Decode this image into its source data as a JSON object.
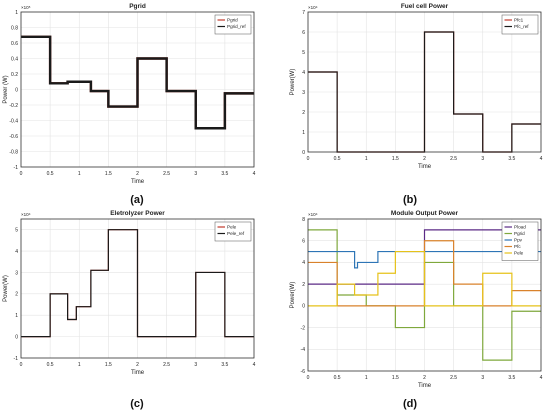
{
  "panel_labels": [
    "(a)",
    "(b)",
    "(c)",
    "(d)"
  ],
  "chart_data": [
    {
      "type": "line",
      "title": "Pgrid",
      "xlabel": "Time",
      "ylabel": "Power (W)",
      "y_exponent": "×10⁵",
      "xlim": [
        0,
        4
      ],
      "ylim": [
        -1,
        1
      ],
      "xticks": [
        0,
        0.5,
        1,
        1.5,
        2,
        2.5,
        3,
        3.5,
        4
      ],
      "yticks": [
        -1,
        -0.8,
        -0.6,
        -0.4,
        -0.2,
        0,
        0.2,
        0.4,
        0.6,
        0.8,
        1
      ],
      "grid": true,
      "legend_position": "top-right",
      "series": [
        {
          "name": "Pgrid",
          "color": "#c0392b",
          "step": true,
          "x": [
            0,
            0.5,
            0.8,
            1.2,
            1.5,
            2,
            2.5,
            3,
            3.5,
            4
          ],
          "y": [
            0.68,
            0.08,
            0.1,
            -0.02,
            -0.22,
            0.4,
            -0.02,
            -0.5,
            -0.05,
            -0.05
          ]
        },
        {
          "name": "Pgrid_ref",
          "color": "#1a1a1a",
          "step": true,
          "x": [
            0,
            0.5,
            0.8,
            1.2,
            1.5,
            2,
            2.5,
            3,
            3.5,
            4
          ],
          "y": [
            0.68,
            0.08,
            0.1,
            -0.02,
            -0.22,
            0.4,
            -0.02,
            -0.5,
            -0.05,
            -0.05
          ]
        }
      ]
    },
    {
      "type": "line",
      "title": "Fuel cell Power",
      "xlabel": "Time",
      "ylabel": "Power(W)",
      "y_exponent": "×10⁴",
      "xlim": [
        0,
        4
      ],
      "ylim": [
        0,
        7
      ],
      "xticks": [
        0,
        0.5,
        1,
        1.5,
        2,
        2.5,
        3,
        3.5,
        4
      ],
      "yticks": [
        0,
        1,
        2,
        3,
        4,
        5,
        6,
        7
      ],
      "grid": true,
      "legend_position": "top-right",
      "series": [
        {
          "name": "Pfc1",
          "color": "#c0392b",
          "step": true,
          "x": [
            0,
            0.5,
            2,
            2.5,
            3,
            3.5,
            4
          ],
          "y": [
            4,
            0,
            6,
            1.9,
            0,
            1.4,
            1.4
          ]
        },
        {
          "name": "Pfc_ref",
          "color": "#1a1a1a",
          "step": true,
          "x": [
            0,
            0.5,
            2,
            2.5,
            3,
            3.5,
            4
          ],
          "y": [
            4,
            0,
            6,
            1.9,
            0,
            1.4,
            1.4
          ]
        }
      ]
    },
    {
      "type": "line",
      "title": "Eletrolyzer Power",
      "xlabel": "Time",
      "ylabel": "Power(W)",
      "y_exponent": "×10⁴",
      "xlim": [
        0,
        4
      ],
      "ylim": [
        -1,
        5.5
      ],
      "xticks": [
        0,
        0.5,
        1,
        1.5,
        2,
        2.5,
        3,
        3.5,
        4
      ],
      "yticks": [
        -1,
        0,
        1,
        2,
        3,
        4,
        5
      ],
      "grid": true,
      "legend_position": "top-right",
      "series": [
        {
          "name": "Pele",
          "color": "#c0392b",
          "step": true,
          "x": [
            0,
            0.5,
            0.8,
            0.95,
            1.2,
            1.5,
            2,
            3,
            3.5,
            4
          ],
          "y": [
            0,
            2,
            0.8,
            1.4,
            3.1,
            5,
            0,
            3,
            0,
            0
          ]
        },
        {
          "name": "Pele_ref",
          "color": "#1a1a1a",
          "step": true,
          "x": [
            0,
            0.5,
            0.8,
            0.95,
            1.2,
            1.5,
            2,
            3,
            3.5,
            4
          ],
          "y": [
            0,
            2,
            0.8,
            1.4,
            3.1,
            5,
            0,
            3,
            0,
            0
          ]
        }
      ]
    },
    {
      "type": "line",
      "title": "Module Output Power",
      "xlabel": "Time",
      "ylabel": "Power(W)",
      "y_exponent": "×10⁴",
      "xlim": [
        0,
        4
      ],
      "ylim": [
        -6,
        8
      ],
      "xticks": [
        0,
        0.5,
        1,
        1.5,
        2,
        2.5,
        3,
        3.5,
        4
      ],
      "yticks": [
        -6,
        -4,
        -2,
        0,
        2,
        4,
        6,
        8
      ],
      "grid": true,
      "legend_position": "top-right",
      "series": [
        {
          "name": "Pload",
          "color": "#5b2a86",
          "step": true,
          "x": [
            0,
            2,
            4
          ],
          "y": [
            2,
            7,
            7
          ]
        },
        {
          "name": "Pgrid",
          "color": "#7fa83c",
          "step": true,
          "x": [
            0,
            0.5,
            1,
            1.5,
            2,
            2.5,
            3,
            3.5,
            4
          ],
          "y": [
            7,
            1,
            0,
            -2,
            4,
            0,
            -5,
            -0.5,
            -0.5
          ]
        },
        {
          "name": "Ppv",
          "color": "#2e75b6",
          "step": true,
          "x": [
            0,
            0.8,
            0.85,
            1.2,
            4
          ],
          "y": [
            5,
            3.5,
            4,
            5,
            5
          ]
        },
        {
          "name": "Pfc",
          "color": "#d9822b",
          "step": true,
          "x": [
            0,
            0.5,
            2,
            2.5,
            3,
            3.5,
            4
          ],
          "y": [
            4,
            0,
            6,
            2,
            0,
            1.4,
            1.4
          ]
        },
        {
          "name": "Pele",
          "color": "#e6c21a",
          "step": true,
          "x": [
            0,
            0.5,
            0.8,
            1.2,
            1.5,
            2,
            3,
            3.5,
            4
          ],
          "y": [
            0,
            2,
            1,
            3,
            5,
            0,
            3,
            0,
            0
          ]
        }
      ]
    }
  ]
}
